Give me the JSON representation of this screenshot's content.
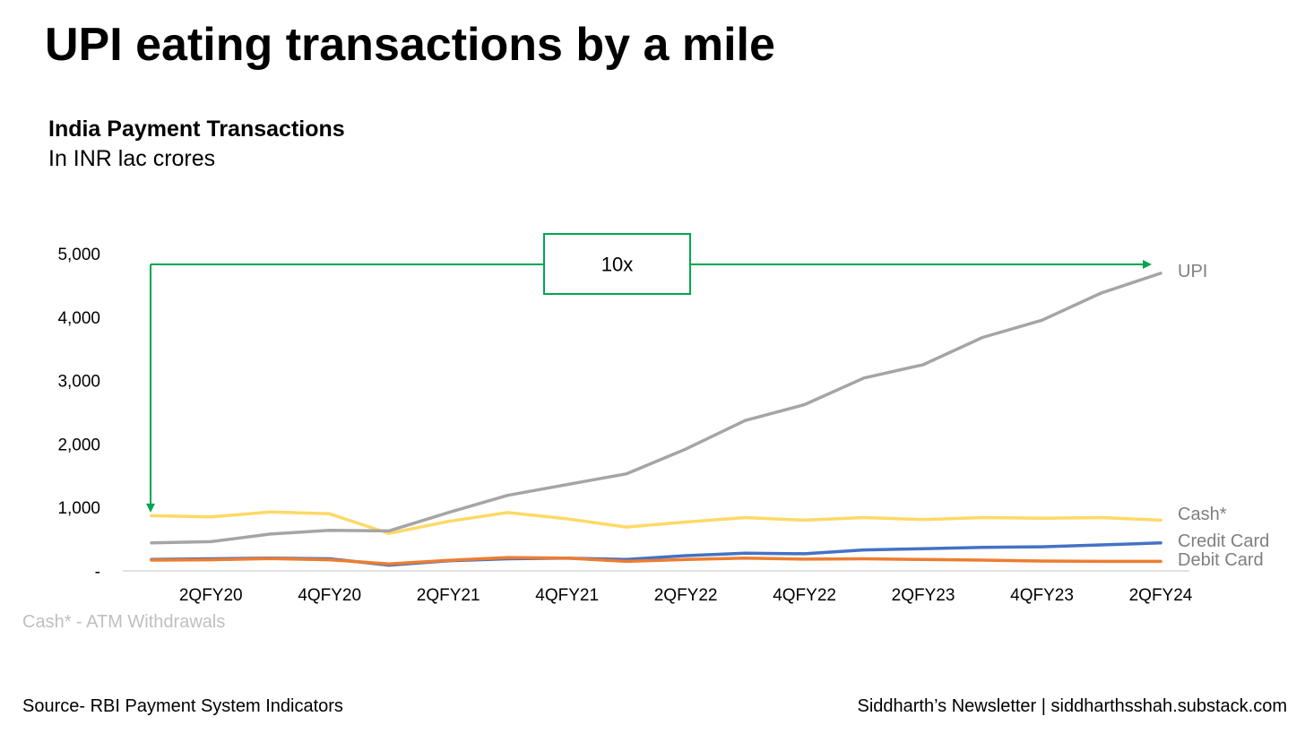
{
  "header": {
    "title": "UPI eating transactions by a mile",
    "subtitle": "India Payment Transactions",
    "units": "In INR lac crores"
  },
  "footer": {
    "footnote": "Cash* - ATM Withdrawals",
    "source": "Source- RBI Payment System Indicators",
    "credit": "Siddharth’s Newsletter | siddharthsshah.substack.com"
  },
  "colors": {
    "upi": "#a5a5a5",
    "cash": "#ffd966",
    "credit_card": "#4472c4",
    "debit_card": "#ed7d31",
    "annotation": "#00a650",
    "axis": "#d9d9d9"
  },
  "chart_data": {
    "type": "line",
    "title": "India Payment Transactions",
    "ylabel": "In INR lac crores",
    "xlabel": "",
    "ylim": [
      0,
      5000
    ],
    "y_ticks": [
      "-",
      "1,000",
      "2,000",
      "3,000",
      "4,000",
      "5,000"
    ],
    "y_tick_values": [
      0,
      1000,
      2000,
      3000,
      4000,
      5000
    ],
    "x_tick_labels": [
      "2QFY20",
      "4QFY20",
      "2QFY21",
      "4QFY21",
      "2QFY22",
      "4QFY22",
      "2QFY23",
      "4QFY23",
      "2QFY24"
    ],
    "x_tick_indices": [
      1,
      3,
      5,
      7,
      9,
      11,
      13,
      15,
      17
    ],
    "points_per_series": 18,
    "grid": false,
    "legend": "inline-right",
    "series": [
      {
        "name": "UPI",
        "color": "#a5a5a5",
        "values": [
          440,
          460,
          580,
          640,
          630,
          920,
          1190,
          1360,
          1530,
          1920,
          2370,
          2620,
          3040,
          3250,
          3680,
          3950,
          4380,
          4690
        ]
      },
      {
        "name": "Cash*",
        "color": "#ffd966",
        "values": [
          870,
          850,
          930,
          900,
          590,
          780,
          920,
          820,
          690,
          770,
          840,
          800,
          840,
          810,
          840,
          830,
          840,
          800
        ]
      },
      {
        "name": "Credit Card",
        "color": "#4472c4",
        "values": [
          180,
          190,
          200,
          190,
          90,
          160,
          190,
          200,
          180,
          240,
          280,
          270,
          330,
          350,
          370,
          380,
          410,
          440
        ]
      },
      {
        "name": "Debit Card",
        "color": "#ed7d31",
        "values": [
          170,
          175,
          195,
          175,
          110,
          165,
          210,
          200,
          150,
          180,
          200,
          185,
          190,
          180,
          170,
          155,
          150,
          150
        ]
      }
    ],
    "annotations": [
      {
        "text": "10x",
        "from_index": 0,
        "to_index": 17,
        "level": 4830
      }
    ]
  }
}
